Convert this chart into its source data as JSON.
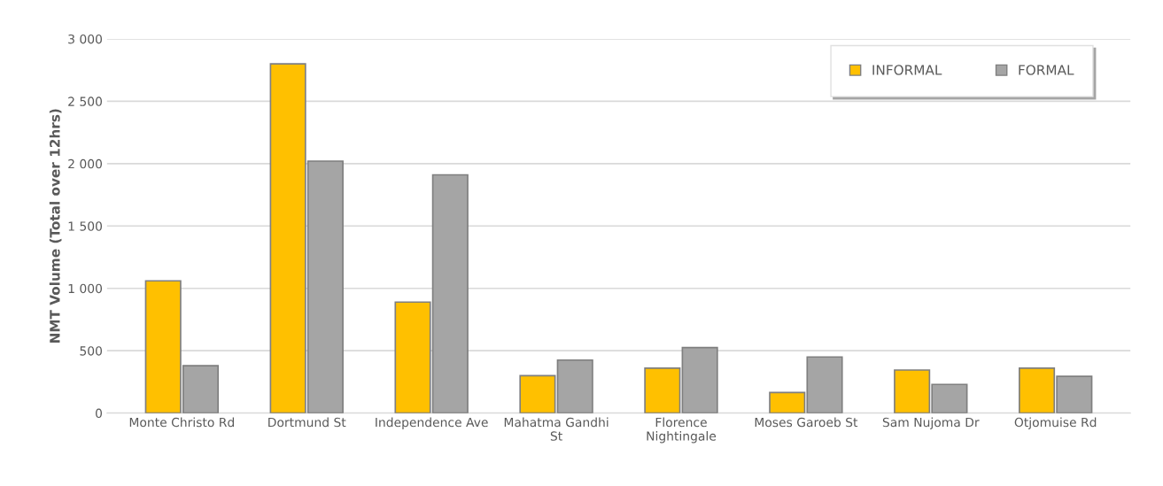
{
  "chart_data": {
    "type": "bar",
    "ylabel": "NMT Volume (Total over 12hrs)",
    "categories": [
      "Monte Christo Rd",
      "Dortmund St",
      "Independence Ave",
      "Mahatma Gandhi\nSt",
      "Florence\nNightingale",
      "Moses Garoeb St",
      "Sam Nujoma Dr",
      "Otjomuise Rd"
    ],
    "series": [
      {
        "name": "INFORMAL",
        "color": "#ffc000",
        "values": [
          1060,
          2800,
          890,
          300,
          360,
          165,
          345,
          360
        ]
      },
      {
        "name": "FORMAL",
        "color": "#a5a5a5",
        "values": [
          380,
          2020,
          1910,
          425,
          525,
          450,
          230,
          295
        ]
      }
    ],
    "ylim": [
      0,
      3000
    ],
    "yticks": [
      0,
      {
        "value": 500,
        "label": "500"
      },
      {
        "value": 1000,
        "label": "1 000"
      },
      {
        "value": 1500,
        "label": "1 500"
      },
      {
        "value": 2000,
        "label": "2 000"
      },
      {
        "value": 2500,
        "label": "2 500"
      },
      {
        "value": 3000,
        "label": "3 000"
      }
    ],
    "grid": "y",
    "legend": "top right"
  }
}
